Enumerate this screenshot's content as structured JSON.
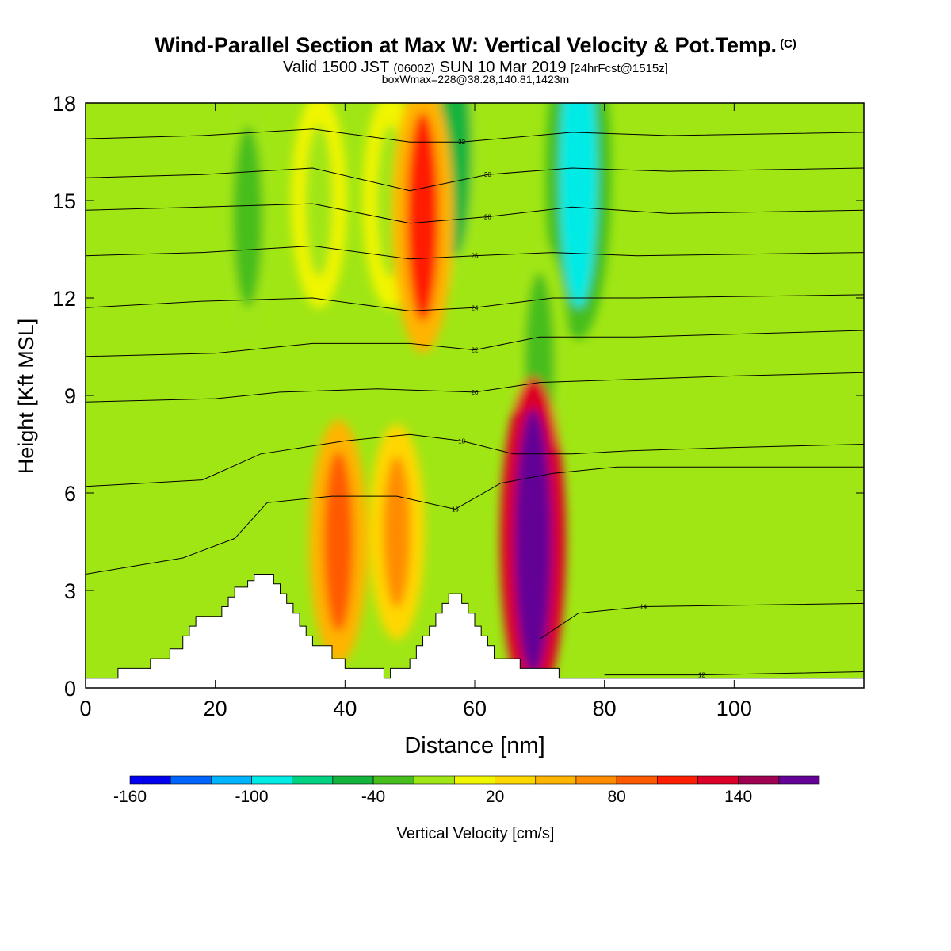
{
  "header": {
    "title": "Wind-Parallel Section at Max W: Vertical Velocity & Pot.Temp.",
    "title_unit": "(C)",
    "valid_prefix": "Valid 1500 JST",
    "valid_utc": "(0600Z)",
    "valid_date": "SUN 10 Mar 2019",
    "forecast": "[24hrFcst@1515z]",
    "box_info": "boxWmax=228@38.28,140.81,1423m"
  },
  "chart_data": {
    "type": "heatmap",
    "xlabel": "Distance [nm]",
    "ylabel": "Height [Kft MSL]",
    "xlim": [
      0,
      120
    ],
    "ylim": [
      0,
      18
    ],
    "x_ticks": [
      0,
      20,
      40,
      60,
      80,
      100
    ],
    "y_ticks": [
      0,
      3,
      6,
      9,
      12,
      15,
      18
    ],
    "colorbar": {
      "label": "Vertical Velocity [cm/s]",
      "tick_labels": [
        "-160",
        "-100",
        "-40",
        "20",
        "80",
        "140"
      ],
      "tick_values": [
        -160,
        -100,
        -40,
        20,
        80,
        140
      ],
      "colors": [
        "#0000ee",
        "#0064ff",
        "#00b4ff",
        "#00ebe6",
        "#00d282",
        "#14b43c",
        "#46be1e",
        "#a0e614",
        "#f0f500",
        "#ffd700",
        "#ffb400",
        "#ff8c00",
        "#ff5a00",
        "#ff1e00",
        "#dc0028",
        "#a00050",
        "#640096"
      ],
      "bin_width": 20
    },
    "terrain_profile": [
      [
        0,
        0.3
      ],
      [
        5,
        0.3
      ],
      [
        5,
        0.6
      ],
      [
        10,
        0.6
      ],
      [
        10,
        0.9
      ],
      [
        13,
        0.9
      ],
      [
        13,
        1.2
      ],
      [
        15,
        1.2
      ],
      [
        15,
        1.6
      ],
      [
        16,
        1.6
      ],
      [
        16,
        1.9
      ],
      [
        17,
        1.9
      ],
      [
        17,
        2.2
      ],
      [
        21,
        2.2
      ],
      [
        21,
        2.5
      ],
      [
        22,
        2.5
      ],
      [
        22,
        2.8
      ],
      [
        23,
        2.8
      ],
      [
        23,
        3.1
      ],
      [
        25,
        3.1
      ],
      [
        25,
        3.3
      ],
      [
        26,
        3.3
      ],
      [
        26,
        3.5
      ],
      [
        29,
        3.5
      ],
      [
        29,
        3.2
      ],
      [
        30,
        3.2
      ],
      [
        30,
        2.9
      ],
      [
        31,
        2.9
      ],
      [
        31,
        2.6
      ],
      [
        32,
        2.6
      ],
      [
        32,
        2.3
      ],
      [
        33,
        2.3
      ],
      [
        33,
        1.9
      ],
      [
        34,
        1.9
      ],
      [
        34,
        1.6
      ],
      [
        35,
        1.6
      ],
      [
        35,
        1.3
      ],
      [
        38,
        1.3
      ],
      [
        38,
        0.9
      ],
      [
        40,
        0.9
      ],
      [
        40,
        0.6
      ],
      [
        46,
        0.6
      ],
      [
        46,
        0.3
      ],
      [
        47,
        0.3
      ],
      [
        47,
        0.6
      ],
      [
        50,
        0.6
      ],
      [
        50,
        0.9
      ],
      [
        51,
        0.9
      ],
      [
        51,
        1.3
      ],
      [
        52,
        1.3
      ],
      [
        52,
        1.6
      ],
      [
        53,
        1.6
      ],
      [
        53,
        1.9
      ],
      [
        54,
        1.9
      ],
      [
        54,
        2.3
      ],
      [
        55,
        2.3
      ],
      [
        55,
        2.6
      ],
      [
        56,
        2.6
      ],
      [
        56,
        2.9
      ],
      [
        58,
        2.9
      ],
      [
        58,
        2.6
      ],
      [
        59,
        2.6
      ],
      [
        59,
        2.3
      ],
      [
        60,
        2.3
      ],
      [
        60,
        1.9
      ],
      [
        61,
        1.9
      ],
      [
        61,
        1.6
      ],
      [
        62,
        1.6
      ],
      [
        62,
        1.3
      ],
      [
        63,
        1.3
      ],
      [
        63,
        0.9
      ],
      [
        67,
        0.9
      ],
      [
        67,
        0.6
      ],
      [
        73,
        0.6
      ],
      [
        73,
        0.3
      ],
      [
        120,
        0.3
      ]
    ],
    "updraft_max": {
      "value": 228,
      "x": 69,
      "y": 4.5
    },
    "wind_cores": [
      {
        "x": 25,
        "y": 14.5,
        "w": -60
      },
      {
        "x": 36,
        "y": 15,
        "w": -40
      },
      {
        "x": 47,
        "y": 15,
        "w": -40
      },
      {
        "x": 57,
        "y": 16.5,
        "w": -80
      },
      {
        "x": 76,
        "y": 15.8,
        "w": -120
      },
      {
        "x": 70,
        "y": 10,
        "w": -60
      },
      {
        "x": 52,
        "y": 14.5,
        "w": 80
      },
      {
        "x": 69,
        "y": 4.5,
        "w": 228
      },
      {
        "x": 39,
        "y": 4.5,
        "w": 60
      },
      {
        "x": 48,
        "y": 4.8,
        "w": 40
      }
    ],
    "isentropes": [
      {
        "theta": 12,
        "path": [
          [
            80,
            0.4
          ],
          [
            95,
            0.4
          ],
          [
            120,
            0.5
          ]
        ]
      },
      {
        "theta": 14,
        "path": [
          [
            70,
            1.5
          ],
          [
            76,
            2.3
          ],
          [
            86,
            2.5
          ],
          [
            120,
            2.6
          ]
        ]
      },
      {
        "theta": 16,
        "path": [
          [
            0,
            3.5
          ],
          [
            15,
            4.0
          ],
          [
            23,
            4.6
          ],
          [
            28,
            5.7
          ],
          [
            38,
            5.9
          ],
          [
            48,
            5.9
          ],
          [
            57,
            5.5
          ],
          [
            64,
            6.3
          ],
          [
            72,
            6.6
          ],
          [
            82,
            6.8
          ],
          [
            95,
            6.8
          ],
          [
            120,
            6.8
          ]
        ]
      },
      {
        "theta": 18,
        "path": [
          [
            0,
            6.2
          ],
          [
            18,
            6.4
          ],
          [
            27,
            7.2
          ],
          [
            40,
            7.6
          ],
          [
            50,
            7.8
          ],
          [
            58,
            7.6
          ],
          [
            66,
            7.2
          ],
          [
            75,
            7.2
          ],
          [
            84,
            7.3
          ],
          [
            100,
            7.4
          ],
          [
            120,
            7.5
          ]
        ]
      },
      {
        "theta": 20,
        "path": [
          [
            0,
            8.8
          ],
          [
            20,
            8.9
          ],
          [
            30,
            9.1
          ],
          [
            45,
            9.2
          ],
          [
            60,
            9.1
          ],
          [
            70,
            9.4
          ],
          [
            85,
            9.5
          ],
          [
            100,
            9.6
          ],
          [
            120,
            9.7
          ]
        ]
      },
      {
        "theta": 22,
        "path": [
          [
            0,
            10.2
          ],
          [
            20,
            10.3
          ],
          [
            35,
            10.6
          ],
          [
            50,
            10.6
          ],
          [
            60,
            10.4
          ],
          [
            70,
            10.8
          ],
          [
            85,
            10.8
          ],
          [
            120,
            11
          ]
        ]
      },
      {
        "theta": 24,
        "path": [
          [
            0,
            11.7
          ],
          [
            18,
            11.9
          ],
          [
            35,
            12.0
          ],
          [
            50,
            11.6
          ],
          [
            60,
            11.7
          ],
          [
            72,
            12.0
          ],
          [
            85,
            12.0
          ],
          [
            120,
            12.1
          ]
        ]
      },
      {
        "theta": 26,
        "path": [
          [
            0,
            13.3
          ],
          [
            18,
            13.4
          ],
          [
            35,
            13.6
          ],
          [
            50,
            13.2
          ],
          [
            60,
            13.3
          ],
          [
            72,
            13.4
          ],
          [
            85,
            13.3
          ],
          [
            120,
            13.4
          ]
        ]
      },
      {
        "theta": 28,
        "path": [
          [
            0,
            14.7
          ],
          [
            18,
            14.8
          ],
          [
            35,
            14.9
          ],
          [
            50,
            14.3
          ],
          [
            62,
            14.5
          ],
          [
            75,
            14.8
          ],
          [
            90,
            14.6
          ],
          [
            120,
            14.7
          ]
        ]
      },
      {
        "theta": 30,
        "path": [
          [
            0,
            15.7
          ],
          [
            18,
            15.8
          ],
          [
            35,
            16.0
          ],
          [
            50,
            15.3
          ],
          [
            62,
            15.8
          ],
          [
            75,
            16.0
          ],
          [
            90,
            15.9
          ],
          [
            120,
            16.0
          ]
        ]
      },
      {
        "theta": 32,
        "path": [
          [
            0,
            16.9
          ],
          [
            18,
            17.0
          ],
          [
            35,
            17.2
          ],
          [
            50,
            16.8
          ],
          [
            58,
            16.8
          ],
          [
            75,
            17.1
          ],
          [
            90,
            17.0
          ],
          [
            120,
            17.1
          ]
        ]
      }
    ],
    "contour_label_values": [
      "12",
      "14",
      "16",
      "18",
      "20",
      "22",
      "24",
      "26",
      "28",
      "30",
      "32"
    ]
  }
}
